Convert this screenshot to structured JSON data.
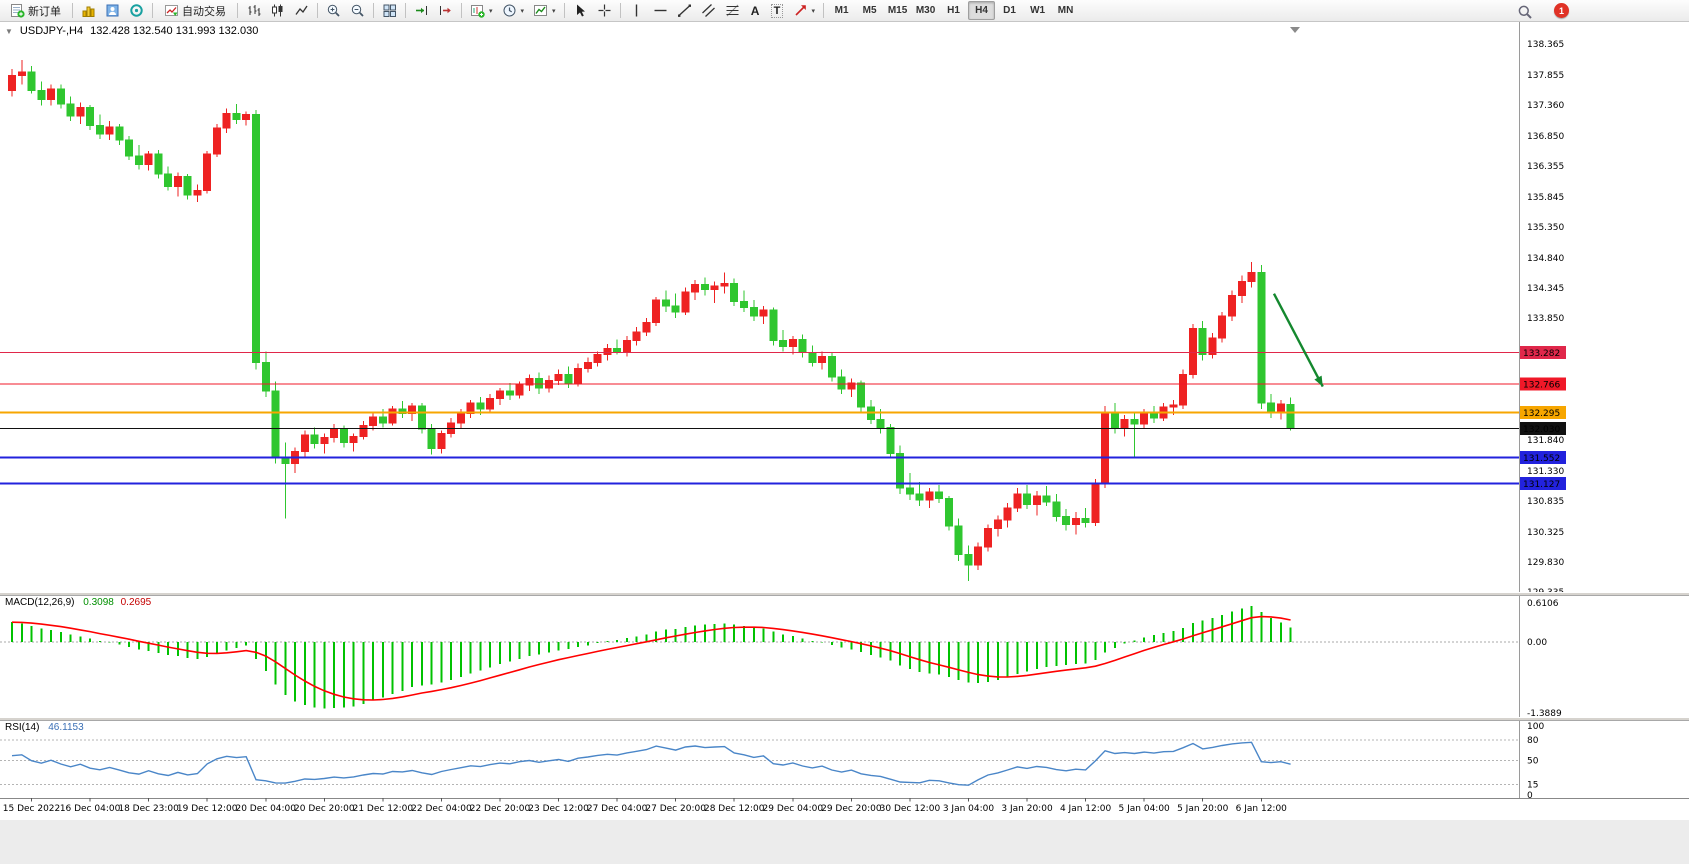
{
  "toolbar": {
    "new_order_label": "新订单",
    "autotrading_label": "自动交易",
    "timeframes": [
      "M1",
      "M5",
      "M15",
      "M30",
      "H1",
      "H4",
      "D1",
      "W1",
      "MN"
    ],
    "active_timeframe": "H4",
    "notification_count": "1",
    "text_tool_glyph": "A",
    "label_tool_glyph": "T",
    "caret_glyph": "▾"
  },
  "chart": {
    "title": "USDJPY-,H4",
    "ohlc": "132.428 132.540 131.993 132.030"
  },
  "macd_panel": {
    "label": "MACD(12,26,9)",
    "main_value": "0.3098",
    "signal_value": "0.2695"
  },
  "rsi_panel": {
    "label": "RSI(14)",
    "value": "46.1153"
  },
  "chart_data": {
    "type": "candlestick",
    "symbol": "USDJPY-",
    "timeframe": "H4",
    "title": "USDJPY-,H4 132.428 132.540 131.993 132.030",
    "current_ohlc": {
      "open": 132.428,
      "high": 132.54,
      "low": 131.993,
      "close": 132.03
    },
    "colors": {
      "bull": "#ee2222",
      "bear": "#2fc62f",
      "macd_hist": "#00c200",
      "macd_signal": "#ff0000",
      "rsi_line": "#4a86c8",
      "background": "#ffffff",
      "current_price": "#111111"
    },
    "candles": [
      [
        137.6,
        137.95,
        137.5,
        137.85
      ],
      [
        137.85,
        138.1,
        137.7,
        137.9
      ],
      [
        137.9,
        138.0,
        137.55,
        137.6
      ],
      [
        137.6,
        137.75,
        137.35,
        137.45
      ],
      [
        137.45,
        137.7,
        137.35,
        137.62
      ],
      [
        137.62,
        137.7,
        137.3,
        137.38
      ],
      [
        137.38,
        137.5,
        137.1,
        137.18
      ],
      [
        137.18,
        137.4,
        137.05,
        137.32
      ],
      [
        137.32,
        137.36,
        136.95,
        137.02
      ],
      [
        137.02,
        137.2,
        136.8,
        136.88
      ],
      [
        136.88,
        137.1,
        136.78,
        137.0
      ],
      [
        137.0,
        137.05,
        136.7,
        136.78
      ],
      [
        136.78,
        136.85,
        136.45,
        136.52
      ],
      [
        136.52,
        136.7,
        136.3,
        136.38
      ],
      [
        136.38,
        136.6,
        136.28,
        136.55
      ],
      [
        136.55,
        136.62,
        136.15,
        136.22
      ],
      [
        136.22,
        136.35,
        135.95,
        136.02
      ],
      [
        136.02,
        136.25,
        135.85,
        136.18
      ],
      [
        136.18,
        136.22,
        135.8,
        135.88
      ],
      [
        135.88,
        136.05,
        135.76,
        135.95
      ],
      [
        135.95,
        136.6,
        135.9,
        136.55
      ],
      [
        136.55,
        137.05,
        136.5,
        136.98
      ],
      [
        136.98,
        137.3,
        136.9,
        137.22
      ],
      [
        137.22,
        137.38,
        137.05,
        137.12
      ],
      [
        137.12,
        137.25,
        137.02,
        137.2
      ],
      [
        137.2,
        137.28,
        133.0,
        133.12
      ],
      [
        133.12,
        133.3,
        132.55,
        132.65
      ],
      [
        132.65,
        132.8,
        131.45,
        131.55
      ],
      [
        131.55,
        131.8,
        130.55,
        131.45
      ],
      [
        131.45,
        131.72,
        131.3,
        131.65
      ],
      [
        131.65,
        132.0,
        131.55,
        131.92
      ],
      [
        131.92,
        132.05,
        131.7,
        131.78
      ],
      [
        131.78,
        131.95,
        131.62,
        131.88
      ],
      [
        131.88,
        132.1,
        131.8,
        132.02
      ],
      [
        132.02,
        132.08,
        131.72,
        131.8
      ],
      [
        131.8,
        131.95,
        131.65,
        131.9
      ],
      [
        131.9,
        132.15,
        131.85,
        132.08
      ],
      [
        132.08,
        132.3,
        132.0,
        132.22
      ],
      [
        132.22,
        132.35,
        132.05,
        132.12
      ],
      [
        132.12,
        132.4,
        132.08,
        132.35
      ],
      [
        132.35,
        132.48,
        132.2,
        132.28
      ],
      [
        132.28,
        132.45,
        132.15,
        132.4
      ],
      [
        132.4,
        132.45,
        131.95,
        132.02
      ],
      [
        132.02,
        132.1,
        131.6,
        131.7
      ],
      [
        131.7,
        132.0,
        131.62,
        131.95
      ],
      [
        131.95,
        132.2,
        131.88,
        132.12
      ],
      [
        132.12,
        132.35,
        132.02,
        132.28
      ],
      [
        132.28,
        132.5,
        132.2,
        132.45
      ],
      [
        132.45,
        132.55,
        132.25,
        132.35
      ],
      [
        132.35,
        132.6,
        132.28,
        132.52
      ],
      [
        132.52,
        132.7,
        132.42,
        132.65
      ],
      [
        132.65,
        132.78,
        132.5,
        132.58
      ],
      [
        132.58,
        132.8,
        132.52,
        132.75
      ],
      [
        132.75,
        132.92,
        132.65,
        132.85
      ],
      [
        132.85,
        132.95,
        132.6,
        132.7
      ],
      [
        132.7,
        132.9,
        132.62,
        132.82
      ],
      [
        132.82,
        133.0,
        132.75,
        132.92
      ],
      [
        132.92,
        133.05,
        132.7,
        132.78
      ],
      [
        132.78,
        133.1,
        132.72,
        133.02
      ],
      [
        133.02,
        133.2,
        132.95,
        133.12
      ],
      [
        133.12,
        133.3,
        133.05,
        133.25
      ],
      [
        133.25,
        133.42,
        133.15,
        133.35
      ],
      [
        133.35,
        133.5,
        133.25,
        133.3
      ],
      [
        133.3,
        133.55,
        133.22,
        133.48
      ],
      [
        133.48,
        133.7,
        133.4,
        133.62
      ],
      [
        133.62,
        133.85,
        133.55,
        133.78
      ],
      [
        133.78,
        134.2,
        133.72,
        134.15
      ],
      [
        134.15,
        134.3,
        133.95,
        134.05
      ],
      [
        134.05,
        134.25,
        133.85,
        133.95
      ],
      [
        133.95,
        134.35,
        133.9,
        134.28
      ],
      [
        134.28,
        134.48,
        134.15,
        134.4
      ],
      [
        134.4,
        134.52,
        134.22,
        134.32
      ],
      [
        134.32,
        134.45,
        134.1,
        134.38
      ],
      [
        134.38,
        134.6,
        134.25,
        134.42
      ],
      [
        134.42,
        134.5,
        134.05,
        134.12
      ],
      [
        134.12,
        134.3,
        133.95,
        134.02
      ],
      [
        134.02,
        134.15,
        133.8,
        133.88
      ],
      [
        133.88,
        134.05,
        133.75,
        133.98
      ],
      [
        133.98,
        134.02,
        133.4,
        133.48
      ],
      [
        133.48,
        133.65,
        133.3,
        133.38
      ],
      [
        133.38,
        133.55,
        133.25,
        133.5
      ],
      [
        133.5,
        133.58,
        133.2,
        133.28
      ],
      [
        133.28,
        133.4,
        133.05,
        133.12
      ],
      [
        133.12,
        133.3,
        133.0,
        133.22
      ],
      [
        133.22,
        133.28,
        132.8,
        132.88
      ],
      [
        132.88,
        133.0,
        132.6,
        132.68
      ],
      [
        132.68,
        132.85,
        132.55,
        132.78
      ],
      [
        132.78,
        132.82,
        132.3,
        132.38
      ],
      [
        132.38,
        132.5,
        132.1,
        132.18
      ],
      [
        132.18,
        132.35,
        131.95,
        132.05
      ],
      [
        132.05,
        132.1,
        131.55,
        131.62
      ],
      [
        131.62,
        131.75,
        130.95,
        131.05
      ],
      [
        131.05,
        131.3,
        130.85,
        130.95
      ],
      [
        130.95,
        131.15,
        130.75,
        130.85
      ],
      [
        130.85,
        131.05,
        130.72,
        130.98
      ],
      [
        130.98,
        131.1,
        130.8,
        130.88
      ],
      [
        130.88,
        130.92,
        130.35,
        130.42
      ],
      [
        130.42,
        130.55,
        129.85,
        129.95
      ],
      [
        129.95,
        130.1,
        129.52,
        129.78
      ],
      [
        129.78,
        130.15,
        129.7,
        130.08
      ],
      [
        130.08,
        130.45,
        130.0,
        130.38
      ],
      [
        130.38,
        130.6,
        130.25,
        130.52
      ],
      [
        130.52,
        130.8,
        130.4,
        130.72
      ],
      [
        130.72,
        131.05,
        130.65,
        130.95
      ],
      [
        130.95,
        131.1,
        130.7,
        130.78
      ],
      [
        130.78,
        131.0,
        130.6,
        130.92
      ],
      [
        130.92,
        131.08,
        130.75,
        130.82
      ],
      [
        130.82,
        130.95,
        130.5,
        130.58
      ],
      [
        130.58,
        130.7,
        130.35,
        130.45
      ],
      [
        130.45,
        130.65,
        130.28,
        130.55
      ],
      [
        130.55,
        130.72,
        130.4,
        130.48
      ],
      [
        130.48,
        131.2,
        130.42,
        131.12
      ],
      [
        131.12,
        132.4,
        131.05,
        132.3
      ],
      [
        132.3,
        132.45,
        131.95,
        132.05
      ],
      [
        132.05,
        132.25,
        131.9,
        132.18
      ],
      [
        132.18,
        132.3,
        131.55,
        132.1
      ],
      [
        132.1,
        132.35,
        132.02,
        132.28
      ],
      [
        132.28,
        132.4,
        132.12,
        132.2
      ],
      [
        132.2,
        132.45,
        132.15,
        132.38
      ],
      [
        132.38,
        132.5,
        132.25,
        132.42
      ],
      [
        132.42,
        133.0,
        132.35,
        132.92
      ],
      [
        132.92,
        133.75,
        132.85,
        133.68
      ],
      [
        133.68,
        133.8,
        133.15,
        133.25
      ],
      [
        133.25,
        133.6,
        133.18,
        133.52
      ],
      [
        133.52,
        133.95,
        133.45,
        133.88
      ],
      [
        133.88,
        134.3,
        133.8,
        134.22
      ],
      [
        134.22,
        134.55,
        134.1,
        134.45
      ],
      [
        134.45,
        134.77,
        134.35,
        134.6
      ],
      [
        134.6,
        134.72,
        132.35,
        132.45
      ],
      [
        132.45,
        132.6,
        132.2,
        132.3
      ],
      [
        132.3,
        132.5,
        132.18,
        132.43
      ],
      [
        132.428,
        132.54,
        131.993,
        132.03
      ]
    ],
    "time_labels": [
      "15 Dec 2022",
      "16 Dec 04:00",
      "18 Dec 23:00",
      "19 Dec 12:00",
      "20 Dec 04:00",
      "20 Dec 20:00",
      "21 Dec 12:00",
      "22 Dec 04:00",
      "22 Dec 20:00",
      "23 Dec 12:00",
      "27 Dec 04:00",
      "27 Dec 20:00",
      "28 Dec 12:00",
      "29 Dec 04:00",
      "29 Dec 20:00",
      "30 Dec 12:00",
      "3 Jan 04:00",
      "3 Jan 20:00",
      "4 Jan 12:00",
      "5 Jan 04:00",
      "5 Jan 20:00",
      "6 Jan 12:00"
    ],
    "price_axis_ticks": [
      138.365,
      137.855,
      137.36,
      136.85,
      136.355,
      135.845,
      135.35,
      134.84,
      134.345,
      133.85,
      131.84,
      131.33,
      130.835,
      130.325,
      129.83,
      129.335
    ],
    "horizontal_lines": [
      {
        "price": 133.282,
        "color": "#e0274a",
        "width": 1
      },
      {
        "price": 132.766,
        "color": "#f01828",
        "width": 1
      },
      {
        "price": 132.295,
        "color": "#f7a600",
        "width": 2
      },
      {
        "price": 131.552,
        "color": "#2222dd",
        "width": 2
      },
      {
        "price": 131.127,
        "color": "#2222dd",
        "width": 2
      }
    ],
    "current_price_line": {
      "price": 132.03,
      "color": "#111111"
    },
    "arrow_object": {
      "from_bar": 129.3,
      "from_price": 134.25,
      "to_bar": 134.3,
      "to_price": 132.72,
      "color": "#14882e"
    },
    "macd": {
      "fast": 12,
      "slow": 26,
      "signal": 9,
      "axis_labels": [
        "0.6106",
        "0.00",
        "-1.3889"
      ],
      "current_main": 0.3098,
      "current_signal": 0.2695
    },
    "rsi": {
      "period": 14,
      "levels": [
        80,
        50,
        15
      ],
      "axis_labels": [
        "100",
        "80",
        "50",
        "15",
        "0"
      ],
      "current": 46.1153
    }
  }
}
